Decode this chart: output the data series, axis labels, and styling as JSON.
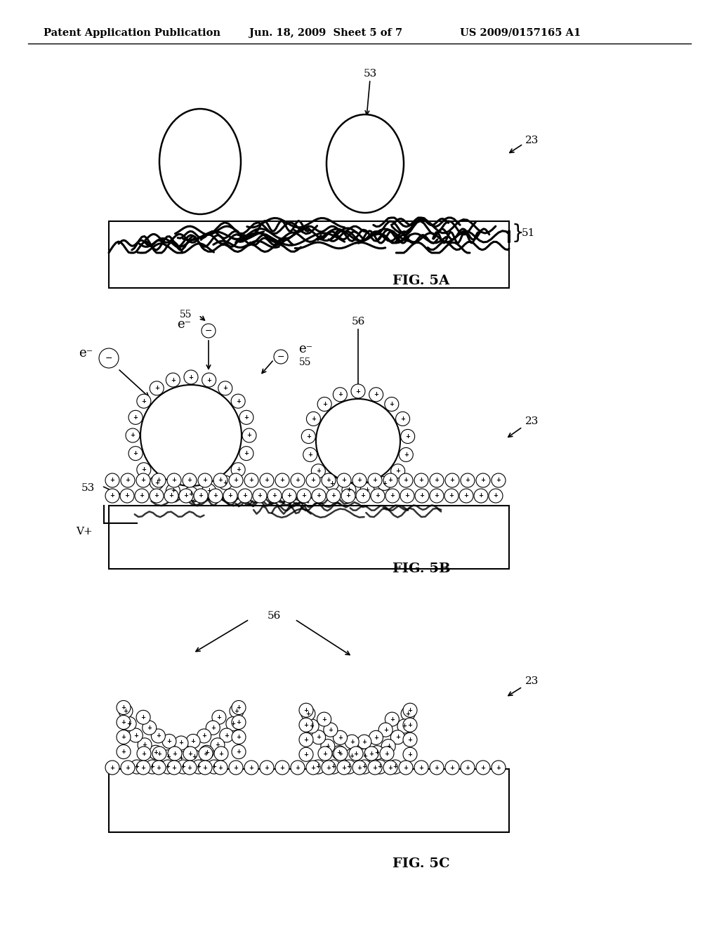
{
  "header_left": "Patent Application Publication",
  "header_mid": "Jun. 18, 2009  Sheet 5 of 7",
  "header_right": "US 2009/0157165 A1",
  "bg_color": "#ffffff",
  "fig5a_label": "FIG. 5A",
  "fig5b_label": "FIG. 5B",
  "fig5c_label": "FIG. 5C"
}
